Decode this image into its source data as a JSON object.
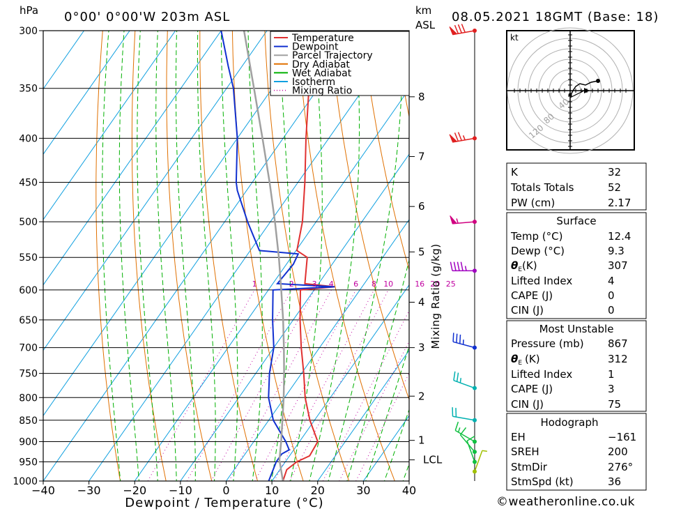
{
  "header": {
    "hpa_label": "hPa",
    "location": "0°00' 0°00'W 203m ASL",
    "km_label": "km",
    "asl_label": "ASL",
    "datetime": "08.05.2021 18GMT (Base: 18)"
  },
  "axes": {
    "xlabel": "Dewpoint / Temperature (°C)",
    "x_ticks": [
      "−40",
      "−30",
      "−20",
      "−10",
      "0",
      "10",
      "20",
      "30",
      "40"
    ],
    "x_values": [
      -40,
      -30,
      -20,
      -10,
      0,
      10,
      20,
      30,
      40
    ],
    "xlim": [
      -40,
      40
    ],
    "pressure_levels": [
      300,
      350,
      400,
      450,
      500,
      550,
      600,
      650,
      700,
      750,
      800,
      850,
      900,
      950,
      1000
    ],
    "pressure_labels": [
      "300",
      "350",
      "400",
      "450",
      "500",
      "550",
      "600",
      "650",
      "700",
      "750",
      "800",
      "850",
      "900",
      "950",
      "1000"
    ],
    "ylim": [
      1000,
      300
    ],
    "mixing_ratio_axis_label": "Mixing Ratio (g/kg)",
    "height_ticks": [
      {
        "label": "8",
        "p": 358
      },
      {
        "label": "7",
        "p": 420
      },
      {
        "label": "6",
        "p": 480
      },
      {
        "label": "5",
        "p": 542
      },
      {
        "label": "4",
        "p": 620
      },
      {
        "label": "3",
        "p": 700
      },
      {
        "label": "2",
        "p": 797
      },
      {
        "label": "1",
        "p": 897
      },
      {
        "label": "LCL",
        "p": 945
      }
    ]
  },
  "legend": {
    "items": [
      {
        "label": "Temperature",
        "color": "#e03030",
        "style": "solid"
      },
      {
        "label": "Dewpoint",
        "color": "#1030d0",
        "style": "solid"
      },
      {
        "label": "Parcel Trajectory",
        "color": "#a0a0a0",
        "style": "solid"
      },
      {
        "label": "Dry Adiabat",
        "color": "#e07000",
        "style": "solid"
      },
      {
        "label": "Wet Adiabat",
        "color": "#00b000",
        "style": "solid"
      },
      {
        "label": "Isotherm",
        "color": "#10a0e0",
        "style": "solid"
      },
      {
        "label": "Mixing Ratio",
        "color": "#c000a0",
        "style": "dotted"
      }
    ]
  },
  "chart_data": {
    "type": "line",
    "title": "Skew-T log-P sounding",
    "xlabel": "Dewpoint / Temperature (°C)",
    "ylabel": "hPa",
    "xlim": [
      -40,
      40
    ],
    "ylim": [
      1000,
      300
    ],
    "series": [
      {
        "name": "Temperature",
        "color": "#e03030",
        "points": [
          [
            1000,
            12.4
          ],
          [
            970,
            11.5
          ],
          [
            950,
            12.5
          ],
          [
            935,
            14.4
          ],
          [
            900,
            14.0
          ],
          [
            850,
            9.0
          ],
          [
            800,
            4.5
          ],
          [
            750,
            0.5
          ],
          [
            700,
            -4.0
          ],
          [
            650,
            -8.5
          ],
          [
            600,
            -13.0
          ],
          [
            595,
            -6.0
          ],
          [
            590,
            -13.0
          ],
          [
            550,
            -16.5
          ],
          [
            540,
            -19.8
          ],
          [
            500,
            -23.0
          ],
          [
            450,
            -28.5
          ],
          [
            400,
            -35.0
          ],
          [
            350,
            -42.0
          ],
          [
            300,
            -49.5
          ]
        ]
      },
      {
        "name": "Dewpoint",
        "color": "#1030d0",
        "points": [
          [
            1000,
            9.3
          ],
          [
            950,
            8.0
          ],
          [
            930,
            8.0
          ],
          [
            920,
            9.0
          ],
          [
            900,
            7.0
          ],
          [
            850,
            1.0
          ],
          [
            800,
            -3.5
          ],
          [
            750,
            -7.0
          ],
          [
            700,
            -10.0
          ],
          [
            650,
            -14.5
          ],
          [
            600,
            -19.0
          ],
          [
            595,
            -6.0
          ],
          [
            590,
            -19.0
          ],
          [
            560,
            -18.5
          ],
          [
            545,
            -19.0
          ],
          [
            540,
            -28.0
          ],
          [
            500,
            -35.0
          ],
          [
            460,
            -42.0
          ],
          [
            450,
            -43.5
          ],
          [
            400,
            -50.0
          ],
          [
            350,
            -58.5
          ],
          [
            330,
            -63.0
          ],
          [
            300,
            -70.0
          ]
        ]
      },
      {
        "name": "Parcel Trajectory",
        "color": "#a0a0a0",
        "points": [
          [
            1000,
            12.4
          ],
          [
            945,
            8.4
          ],
          [
            900,
            6.0
          ],
          [
            850,
            3.0
          ],
          [
            800,
            -0.2
          ],
          [
            750,
            -3.8
          ],
          [
            700,
            -7.8
          ],
          [
            650,
            -12.2
          ],
          [
            600,
            -17.2
          ],
          [
            550,
            -22.7
          ],
          [
            500,
            -29.0
          ],
          [
            450,
            -36.2
          ],
          [
            400,
            -44.5
          ],
          [
            350,
            -54.0
          ],
          [
            300,
            -65.0
          ]
        ]
      }
    ],
    "mixing_ratio_labels": [
      "1",
      "2",
      "3",
      "4",
      "6",
      "8",
      "10",
      "16",
      "20",
      "25"
    ],
    "mixing_ratio_values": [
      1,
      2,
      3,
      4,
      6,
      8,
      10,
      16,
      20,
      25
    ],
    "wind_barbs": [
      {
        "p": 300,
        "dir": 260,
        "speed_kt": 80,
        "color": "#e02020"
      },
      {
        "p": 400,
        "dir": 260,
        "speed_kt": 75,
        "color": "#e02020"
      },
      {
        "p": 500,
        "dir": 265,
        "speed_kt": 55,
        "color": "#d00080"
      },
      {
        "p": 570,
        "dir": 270,
        "speed_kt": 45,
        "color": "#a000c0"
      },
      {
        "p": 700,
        "dir": 285,
        "speed_kt": 35,
        "color": "#1030d0"
      },
      {
        "p": 780,
        "dir": 290,
        "speed_kt": 25,
        "color": "#00b0b0"
      },
      {
        "p": 850,
        "dir": 280,
        "speed_kt": 20,
        "color": "#00b0b0"
      },
      {
        "p": 900,
        "dir": 300,
        "speed_kt": 15,
        "color": "#10c040"
      },
      {
        "p": 925,
        "dir": 320,
        "speed_kt": 10,
        "color": "#10c040"
      },
      {
        "p": 950,
        "dir": 340,
        "speed_kt": 10,
        "color": "#10c040"
      },
      {
        "p": 975,
        "dir": 20,
        "speed_kt": 5,
        "color": "#a0c000"
      }
    ],
    "hodograph": {
      "unit_label": "kt",
      "ring_labels": [
        "40",
        "80",
        "120"
      ],
      "ring_values": [
        40,
        80,
        120
      ],
      "trace": [
        [
          0,
          -8
        ],
        [
          4,
          0
        ],
        [
          8,
          6
        ],
        [
          14,
          10
        ],
        [
          22,
          8
        ],
        [
          30,
          12
        ],
        [
          40,
          14
        ]
      ],
      "storm_motion": [
        10,
        0
      ]
    }
  },
  "indices": {
    "k_label": "K",
    "k_value": "32",
    "tt_label": "Totals Totals",
    "tt_value": "52",
    "pw_label": "PW (cm)",
    "pw_value": "2.17"
  },
  "surface": {
    "title": "Surface",
    "temp_label": "Temp (°C)",
    "temp_value": "12.4",
    "dewp_label": "Dewp (°C)",
    "dewp_value": "9.3",
    "theta_e_symbol": "θ",
    "theta_e_sub": "E",
    "theta_e_unit": "(K)",
    "theta_e_value": "307",
    "li_label": "Lifted Index",
    "li_value": "4",
    "cape_label": "CAPE (J)",
    "cape_value": "0",
    "cin_label": "CIN (J)",
    "cin_value": "0"
  },
  "most_unstable": {
    "title": "Most Unstable",
    "pressure_label": "Pressure (mb)",
    "pressure_value": "867",
    "theta_e_symbol": "θ",
    "theta_e_sub": "E",
    "theta_e_unit": "(K)",
    "theta_e_value": "312",
    "li_label": "Lifted Index",
    "li_value": "1",
    "cape_label": "CAPE (J)",
    "cape_value": "3",
    "cin_label": "CIN (J)",
    "cin_value": "75"
  },
  "hodograph_table": {
    "title": "Hodograph",
    "eh_label": "EH",
    "eh_value": "−161",
    "sreh_label": "SREH",
    "sreh_value": "200",
    "stmdir_label": "StmDir",
    "stmdir_value": "276°",
    "stmspd_label": "StmSpd (kt)",
    "stmspd_value": "36"
  },
  "footer": {
    "copyright": "©weatheronline.co.uk"
  }
}
